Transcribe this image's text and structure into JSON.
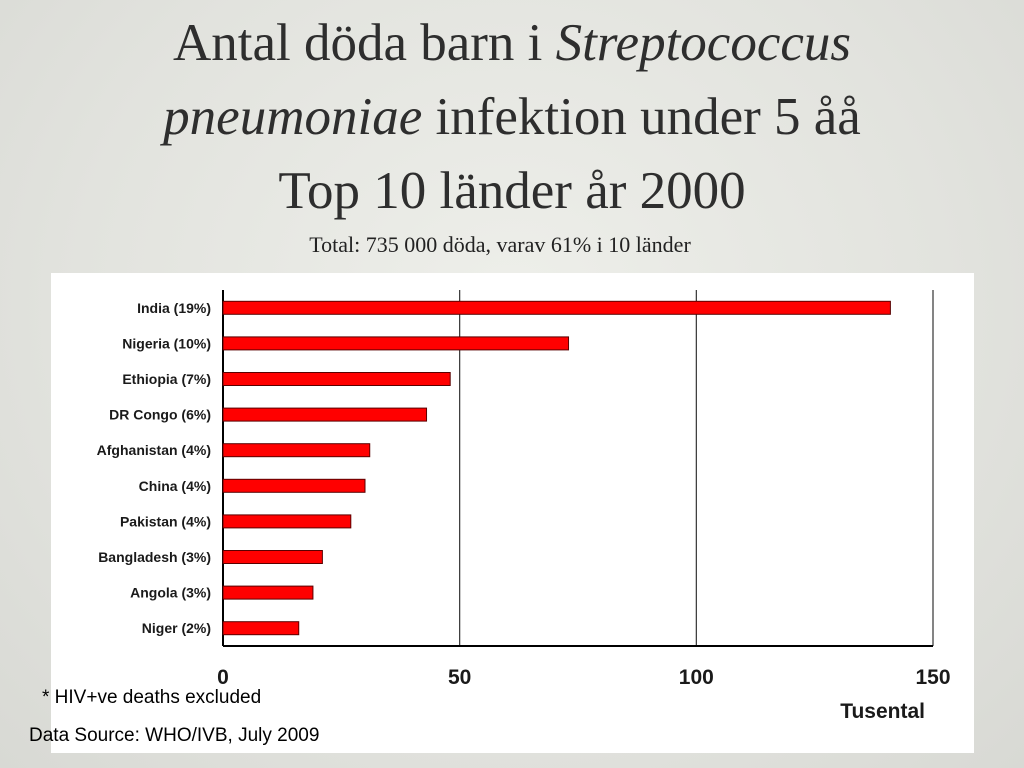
{
  "title": {
    "line1_prefix": "Antal döda barn i ",
    "line1_italic": "Streptococcus",
    "line2_italic": "pneumoniae",
    "line2_suffix": " infektion under 5 åå",
    "line3": "Top 10 länder år 2000"
  },
  "subtitle": "Total: 735 000 döda, varav 61%  i 10 länder",
  "footnote": "* HIV+ve deaths excluded",
  "source": "Data Source: WHO/IVB, July 2009",
  "colors": {
    "bar": "#ff0000",
    "bar_outline": "#5a0000",
    "background": "#e3e4df",
    "panel": "#ffffff"
  },
  "chart_data": {
    "type": "bar",
    "orientation": "horizontal",
    "categories": [
      "India (19%)",
      "Nigeria (10%)",
      "Ethiopia (7%)",
      "DR Congo (6%)",
      "Afghanistan (4%)",
      "China (4%)",
      "Pakistan (4%)",
      "Bangladesh (3%)",
      "Angola (3%)",
      "Niger (2%)"
    ],
    "values": [
      141,
      73,
      48,
      43,
      31,
      30,
      27,
      21,
      19,
      16
    ],
    "xlabel": "Tusental",
    "ylabel": "",
    "xlim": [
      0,
      150
    ],
    "xticks": [
      0,
      50,
      100,
      150
    ],
    "grid": true
  }
}
